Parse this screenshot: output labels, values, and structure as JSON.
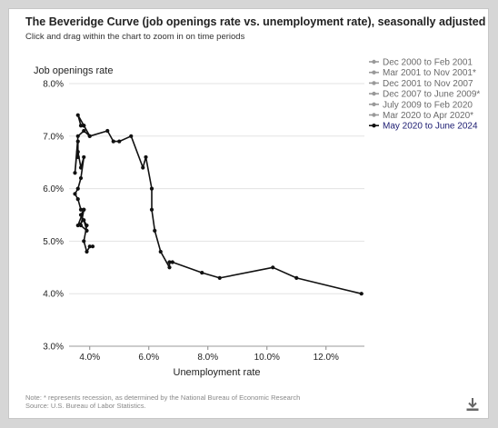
{
  "header": {
    "title": "The Beveridge Curve (job openings rate vs. unemployment rate), seasonally adjusted",
    "subtitle": "Click and drag within the chart to zoom in on time periods"
  },
  "footer": {
    "note": "Note: * represents recession, as determined by the National Bureau of Economic Research",
    "source": "Source: U.S. Bureau of Labor Statistics."
  },
  "icons": {
    "download": "download-icon"
  },
  "colors": {
    "active_series": "#111111",
    "inactive_series": "#999999",
    "active_legend_text": "#1a1a70",
    "inactive_legend_text": "#6b6b6b"
  },
  "chart_data": {
    "type": "line",
    "xlabel": "Unemployment rate",
    "ylabel": "Job openings rate",
    "xlim": [
      3.3,
      13.3
    ],
    "ylim": [
      3.0,
      8.0
    ],
    "xticks": [
      "4.0%",
      "6.0%",
      "8.0%",
      "10.0%",
      "12.0%"
    ],
    "yticks": [
      "3.0%",
      "4.0%",
      "5.0%",
      "6.0%",
      "7.0%",
      "8.0%"
    ],
    "legend_position": "top-right",
    "series": [
      {
        "name": "Dec 2000 to Feb 2001",
        "visible": false,
        "points": []
      },
      {
        "name": "Mar 2001 to Nov 2001*",
        "visible": false,
        "points": []
      },
      {
        "name": "Dec 2001 to Nov 2007",
        "visible": false,
        "points": []
      },
      {
        "name": "Dec 2007 to June 2009*",
        "visible": false,
        "points": []
      },
      {
        "name": "July 2009 to Feb 2020",
        "visible": false,
        "points": []
      },
      {
        "name": "Mar 2020 to Apr 2020*",
        "visible": false,
        "points": []
      },
      {
        "name": "May 2020 to June 2024",
        "visible": true,
        "points": [
          [
            13.2,
            4.0
          ],
          [
            11.0,
            4.3
          ],
          [
            10.2,
            4.5
          ],
          [
            8.4,
            4.3
          ],
          [
            7.8,
            4.4
          ],
          [
            6.8,
            4.6
          ],
          [
            6.7,
            4.6
          ],
          [
            6.7,
            4.5
          ],
          [
            6.4,
            4.8
          ],
          [
            6.2,
            5.2
          ],
          [
            6.1,
            5.6
          ],
          [
            6.1,
            6.0
          ],
          [
            5.9,
            6.6
          ],
          [
            5.8,
            6.4
          ],
          [
            5.4,
            7.0
          ],
          [
            5.0,
            6.9
          ],
          [
            4.8,
            6.9
          ],
          [
            4.6,
            7.1
          ],
          [
            4.0,
            7.0
          ],
          [
            3.8,
            7.2
          ],
          [
            3.6,
            7.4
          ],
          [
            3.7,
            7.2
          ],
          [
            3.8,
            7.2
          ],
          [
            4.0,
            7.0
          ],
          [
            3.8,
            7.1
          ],
          [
            3.6,
            7.0
          ],
          [
            3.5,
            6.3
          ],
          [
            3.6,
            6.9
          ],
          [
            3.6,
            6.6
          ],
          [
            3.6,
            6.7
          ],
          [
            3.7,
            6.4
          ],
          [
            3.8,
            6.6
          ],
          [
            3.7,
            6.2
          ],
          [
            3.6,
            6.0
          ],
          [
            3.5,
            5.9
          ],
          [
            3.6,
            5.8
          ],
          [
            3.7,
            5.6
          ],
          [
            3.8,
            5.6
          ],
          [
            3.7,
            5.3
          ],
          [
            3.9,
            5.2
          ],
          [
            3.8,
            5.4
          ],
          [
            3.6,
            5.3
          ],
          [
            3.8,
            5.6
          ],
          [
            3.7,
            5.5
          ],
          [
            3.9,
            5.3
          ],
          [
            3.8,
            5.0
          ],
          [
            3.9,
            4.8
          ],
          [
            4.0,
            4.9
          ],
          [
            4.1,
            4.9
          ]
        ]
      }
    ]
  }
}
